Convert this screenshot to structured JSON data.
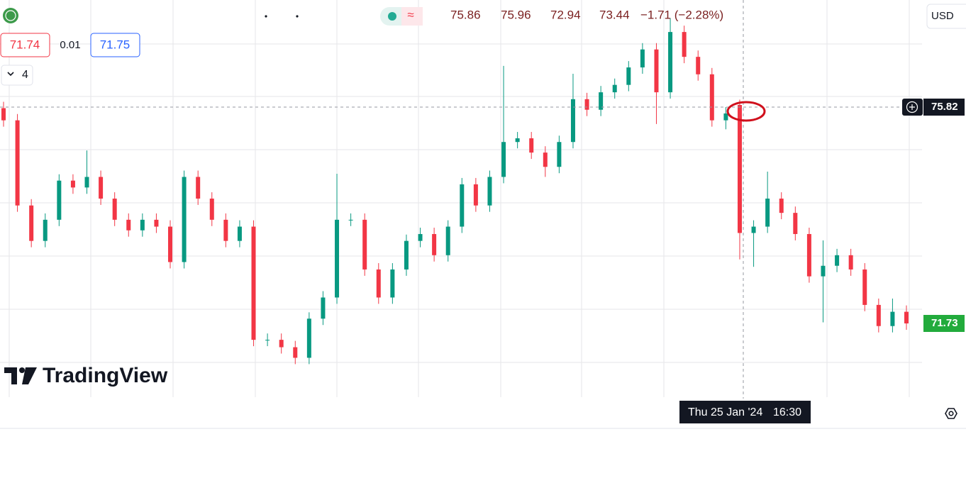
{
  "header": {
    "open": 75.86,
    "high": 75.96,
    "low": 72.94,
    "close": 73.44,
    "change": "−1.71 (−2.28%)"
  },
  "quote": {
    "bid": 71.74,
    "spread": 0.01,
    "ask": 71.75,
    "indicators": "4"
  },
  "currency": "USD",
  "price_labels": {
    "crosshair": 75.82,
    "last": 71.73
  },
  "crosshair_time": {
    "date": "Thu 25 Jan '24",
    "time": "16:30"
  },
  "logo": "TradingView",
  "chart_data": {
    "type": "candlestick",
    "up_color": "#089981",
    "down_color": "#f23645",
    "candles": [
      [
        75.8,
        75.92,
        75.45,
        75.57
      ],
      [
        75.57,
        75.69,
        73.84,
        73.96
      ],
      [
        73.96,
        74.08,
        73.17,
        73.29
      ],
      [
        73.29,
        73.81,
        73.17,
        73.69
      ],
      [
        73.69,
        74.55,
        73.57,
        74.43
      ],
      [
        74.43,
        74.55,
        74.18,
        74.3
      ],
      [
        74.3,
        75.0,
        74.18,
        74.5
      ],
      [
        74.5,
        74.62,
        73.97,
        74.09
      ],
      [
        74.09,
        74.21,
        73.57,
        73.69
      ],
      [
        73.69,
        73.81,
        73.37,
        73.49
      ],
      [
        73.49,
        73.81,
        73.37,
        73.69
      ],
      [
        73.69,
        73.81,
        73.44,
        73.56
      ],
      [
        73.56,
        73.68,
        72.77,
        72.89
      ],
      [
        72.89,
        74.62,
        72.77,
        74.5
      ],
      [
        74.5,
        74.62,
        73.97,
        74.09
      ],
      [
        74.09,
        74.21,
        73.57,
        73.69
      ],
      [
        73.69,
        73.81,
        73.17,
        73.29
      ],
      [
        73.29,
        73.68,
        73.17,
        73.56
      ],
      [
        73.56,
        73.68,
        71.3,
        71.42
      ],
      [
        71.42,
        71.54,
        71.3,
        71.42
      ],
      [
        71.42,
        71.54,
        71.16,
        71.28
      ],
      [
        71.28,
        71.4,
        70.96,
        71.08
      ],
      [
        71.08,
        71.94,
        70.96,
        71.82
      ],
      [
        71.82,
        72.34,
        71.7,
        72.22
      ],
      [
        72.22,
        74.56,
        72.1,
        73.69
      ],
      [
        73.69,
        73.81,
        73.57,
        73.69
      ],
      [
        73.69,
        73.81,
        72.63,
        72.75
      ],
      [
        72.75,
        72.87,
        72.1,
        72.22
      ],
      [
        72.22,
        72.87,
        72.1,
        72.75
      ],
      [
        72.75,
        73.41,
        72.63,
        73.29
      ],
      [
        73.29,
        73.54,
        73.17,
        73.42
      ],
      [
        73.42,
        73.54,
        72.9,
        73.02
      ],
      [
        73.02,
        73.68,
        72.9,
        73.56
      ],
      [
        73.56,
        74.48,
        73.44,
        74.36
      ],
      [
        74.36,
        74.48,
        73.84,
        73.96
      ],
      [
        73.96,
        74.62,
        73.84,
        74.5
      ],
      [
        74.5,
        76.6,
        74.38,
        75.16
      ],
      [
        75.16,
        75.35,
        75.04,
        75.23
      ],
      [
        75.23,
        75.35,
        74.84,
        74.96
      ],
      [
        74.96,
        75.08,
        74.5,
        74.69
      ],
      [
        74.69,
        75.28,
        74.57,
        75.16
      ],
      [
        75.16,
        76.45,
        75.04,
        75.97
      ],
      [
        75.97,
        76.09,
        75.65,
        75.77
      ],
      [
        75.77,
        76.22,
        75.65,
        76.1
      ],
      [
        76.1,
        76.36,
        75.98,
        76.24
      ],
      [
        76.24,
        76.69,
        76.12,
        76.57
      ],
      [
        76.57,
        77.03,
        76.45,
        76.91
      ],
      [
        76.91,
        77.03,
        75.5,
        76.1
      ],
      [
        76.1,
        77.5,
        75.98,
        77.24
      ],
      [
        77.24,
        77.36,
        76.65,
        76.77
      ],
      [
        76.77,
        76.89,
        76.32,
        76.44
      ],
      [
        76.44,
        76.56,
        75.45,
        75.57
      ],
      [
        75.57,
        75.82,
        75.4,
        75.7
      ],
      [
        75.86,
        75.96,
        72.94,
        73.44
      ],
      [
        73.44,
        73.68,
        72.8,
        73.56
      ],
      [
        73.56,
        74.6,
        73.44,
        74.09
      ],
      [
        74.09,
        74.21,
        73.7,
        73.82
      ],
      [
        73.82,
        73.94,
        73.3,
        73.42
      ],
      [
        73.42,
        73.54,
        72.5,
        72.62
      ],
      [
        72.62,
        73.3,
        71.75,
        72.82
      ],
      [
        72.82,
        73.14,
        72.7,
        73.02
      ],
      [
        73.02,
        73.14,
        72.63,
        72.75
      ],
      [
        72.75,
        72.87,
        71.96,
        72.08
      ],
      [
        72.08,
        72.2,
        71.56,
        71.68
      ],
      [
        71.68,
        72.2,
        71.56,
        71.95
      ],
      [
        71.95,
        72.07,
        71.61,
        71.73
      ]
    ]
  }
}
